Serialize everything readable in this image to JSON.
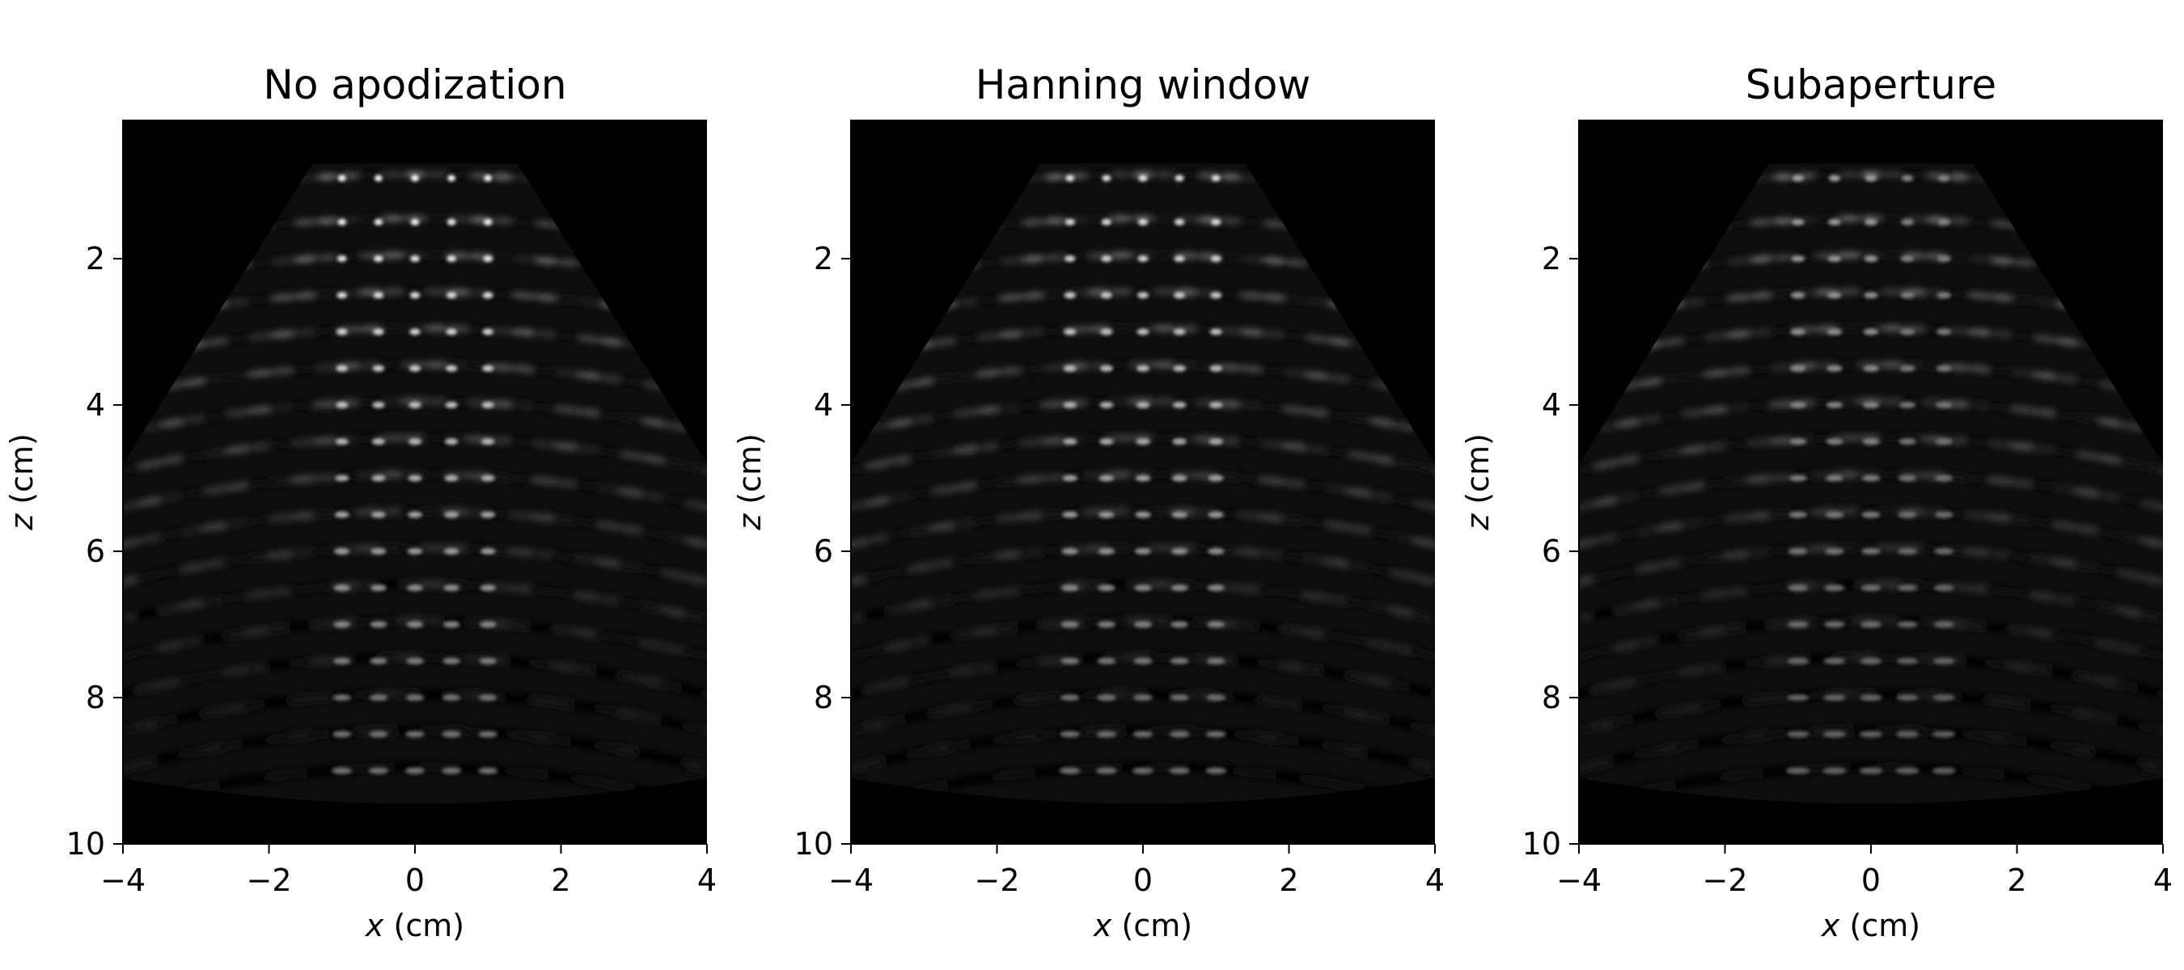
{
  "chart_data": [
    {
      "type": "heatmap",
      "title": "No apodization",
      "xlabel": {
        "var": "x",
        "unit": " (cm)"
      },
      "ylabel": {
        "var": "z",
        "unit": " (cm)"
      },
      "xlim": [
        -4,
        4
      ],
      "ylim": [
        10,
        0.1
      ],
      "y_inverted": true,
      "xticks": [
        -4,
        -2,
        0,
        2,
        4
      ],
      "xtick_labels": [
        "−4",
        "−2",
        "0",
        "2",
        "4"
      ],
      "yticks": [
        2,
        4,
        6,
        8,
        10
      ],
      "ytick_labels": [
        "2",
        "4",
        "6",
        "8",
        "10"
      ],
      "colormap": "gray",
      "background": "#000000",
      "sector": {
        "top_z": 0.7,
        "top_half_width_x": 1.4,
        "edge_reach_z": 4.8,
        "bottom_z": 9.3
      },
      "targets": {
        "x": [
          -1,
          -0.5,
          0,
          0.5,
          1
        ],
        "z": [
          0.9,
          1.5,
          2,
          2.5,
          3,
          3.5,
          4,
          4.5,
          5,
          5.5,
          6,
          6.5,
          7,
          7.5,
          8,
          8.5,
          9
        ]
      },
      "focus_sharpness": 1.0
    },
    {
      "type": "heatmap",
      "title": "Hanning window",
      "xlabel": {
        "var": "x",
        "unit": " (cm)"
      },
      "ylabel": {
        "var": "z",
        "unit": " (cm)"
      },
      "xlim": [
        -4,
        4
      ],
      "ylim": [
        10,
        0.1
      ],
      "y_inverted": true,
      "xticks": [
        -4,
        -2,
        0,
        2,
        4
      ],
      "xtick_labels": [
        "−4",
        "−2",
        "0",
        "2",
        "4"
      ],
      "yticks": [
        2,
        4,
        6,
        8,
        10
      ],
      "ytick_labels": [
        "2",
        "4",
        "6",
        "8",
        "10"
      ],
      "colormap": "gray",
      "background": "#000000",
      "sector": {
        "top_z": 0.7,
        "top_half_width_x": 1.4,
        "edge_reach_z": 4.8,
        "bottom_z": 9.3
      },
      "targets": {
        "x": [
          -1,
          -0.5,
          0,
          0.5,
          1
        ],
        "z": [
          0.9,
          1.5,
          2,
          2.5,
          3,
          3.5,
          4,
          4.5,
          5,
          5.5,
          6,
          6.5,
          7,
          7.5,
          8,
          8.5,
          9
        ]
      },
      "focus_sharpness": 0.85
    },
    {
      "type": "heatmap",
      "title": "Subaperture",
      "xlabel": {
        "var": "x",
        "unit": " (cm)"
      },
      "ylabel": {
        "var": "z",
        "unit": " (cm)"
      },
      "xlim": [
        -4,
        4
      ],
      "ylim": [
        10,
        0.1
      ],
      "y_inverted": true,
      "xticks": [
        -4,
        -2,
        0,
        2,
        4
      ],
      "xtick_labels": [
        "−4",
        "−2",
        "0",
        "2",
        "4"
      ],
      "yticks": [
        2,
        4,
        6,
        8,
        10
      ],
      "ytick_labels": [
        "2",
        "4",
        "6",
        "8",
        "10"
      ],
      "colormap": "gray",
      "background": "#000000",
      "sector": {
        "top_z": 0.7,
        "top_half_width_x": 1.4,
        "edge_reach_z": 4.8,
        "bottom_z": 9.3
      },
      "targets": {
        "x": [
          -1,
          -0.5,
          0,
          0.5,
          1
        ],
        "z": [
          0.9,
          1.5,
          2,
          2.5,
          3,
          3.5,
          4,
          4.5,
          5,
          5.5,
          6,
          6.5,
          7,
          7.5,
          8,
          8.5,
          9
        ]
      },
      "focus_sharpness": 0.5
    }
  ]
}
